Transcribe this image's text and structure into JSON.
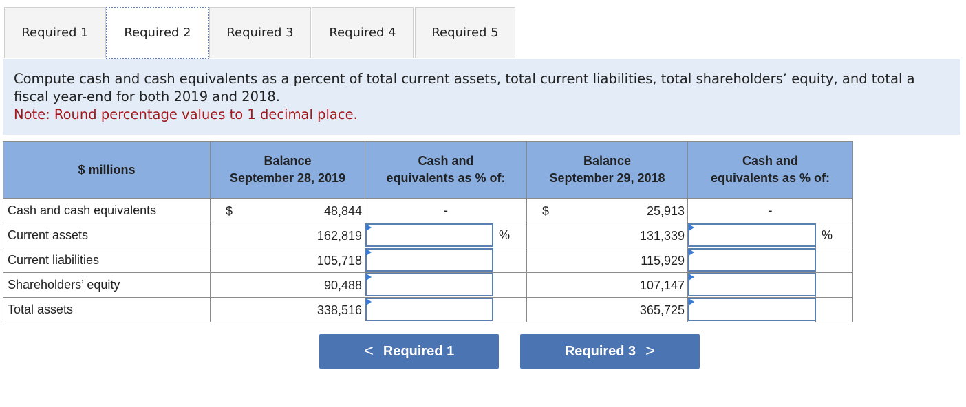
{
  "tabs": [
    {
      "label": "Required 1",
      "active": false
    },
    {
      "label": "Required 2",
      "active": true
    },
    {
      "label": "Required 3",
      "active": false
    },
    {
      "label": "Required 4",
      "active": false
    },
    {
      "label": "Required 5",
      "active": false
    }
  ],
  "instructions": {
    "line1": "Compute cash and cash equivalents as a percent of total current assets, total current liabilities, total shareholders’ equity, and total a",
    "line2": "fiscal year-end for both 2019 and 2018.",
    "note": "Note: Round percentage values to 1 decimal place."
  },
  "table": {
    "headers": {
      "label": "$ millions",
      "bal2019_line1": "Balance",
      "bal2019_line2": "September 28, 2019",
      "pct_line1": "Cash and",
      "pct_line2": "equivalents as % of:",
      "bal2018_line1": "Balance",
      "bal2018_line2": "September 29, 2018",
      "pct2_line1": "Cash and",
      "pct2_line2": "equivalents as % of:"
    },
    "currency": "$",
    "dash": "-",
    "percent_sign": "%",
    "rows": [
      {
        "label": "Cash and cash equivalents",
        "v2019": "48,844",
        "v2018": "25,913",
        "input2019": "",
        "input2018": ""
      },
      {
        "label": "Current assets",
        "v2019": "162,819",
        "v2018": "131,339",
        "input2019": "",
        "input2018": ""
      },
      {
        "label": "Current liabilities",
        "v2019": "105,718",
        "v2018": "115,929",
        "input2019": "",
        "input2018": ""
      },
      {
        "label": "Shareholders’ equity",
        "v2019": "90,488",
        "v2018": "107,147",
        "input2019": "",
        "input2018": ""
      },
      {
        "label": "Total assets",
        "v2019": "338,516",
        "v2018": "365,725",
        "input2019": "",
        "input2018": ""
      }
    ]
  },
  "nav": {
    "prev_label": "Required 1",
    "prev_chevron": "<",
    "next_label": "Required 3",
    "next_chevron": ">"
  },
  "colors": {
    "header_bg": "#8aaee0",
    "instructions_bg": "#e3ecf7",
    "note": "#a3161a",
    "button_bg": "#4b74b3",
    "input_border": "#5a7fb1"
  }
}
